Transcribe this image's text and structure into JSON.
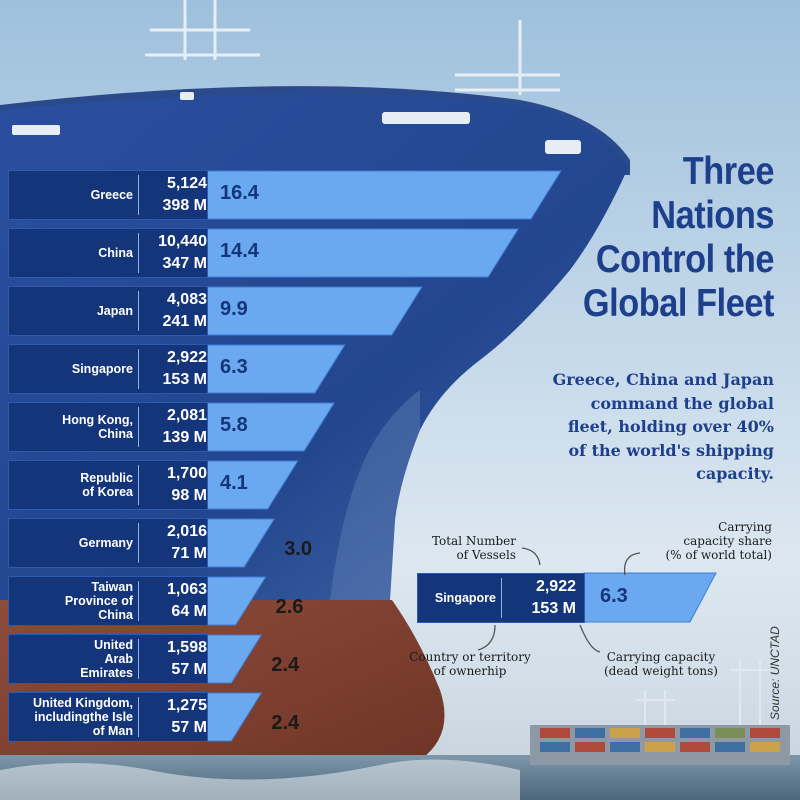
{
  "title": "Three Nations Control the Global Fleet",
  "title_lines": [
    "Three",
    "Nations",
    "Control the",
    "Global Fleet"
  ],
  "subtitle_lines": [
    "Greece, China and Japan",
    "command the global",
    "fleet, holding over 40%",
    "of the world's shipping",
    "capacity."
  ],
  "source": "Source: UNCTAD",
  "colors": {
    "panel": "#15357a",
    "bar": "#6aa8ef",
    "bar_edge": "#3d7ed6",
    "text_dark": "#1a1a1a",
    "title": "#1d3f8c"
  },
  "chart_data": {
    "type": "bar",
    "orientation": "horizontal",
    "title": "Three Nations Control the Global Fleet",
    "value_label": "Carrying capacity share (% of world total)",
    "rows": [
      {
        "country_lines": [
          "Greece"
        ],
        "vessels": "5,124",
        "dwt": "398 M",
        "share": 16.4,
        "share_label": "16.4"
      },
      {
        "country_lines": [
          "China"
        ],
        "vessels": "10,440",
        "dwt": "347 M",
        "share": 14.4,
        "share_label": "14.4"
      },
      {
        "country_lines": [
          "Japan"
        ],
        "vessels": "4,083",
        "dwt": "241 M",
        "share": 9.9,
        "share_label": "9.9"
      },
      {
        "country_lines": [
          "Singapore"
        ],
        "vessels": "2,922",
        "dwt": "153 M",
        "share": 6.3,
        "share_label": "6.3"
      },
      {
        "country_lines": [
          "Hong Kong,",
          "China"
        ],
        "vessels": "2,081",
        "dwt": "139 M",
        "share": 5.8,
        "share_label": "5.8"
      },
      {
        "country_lines": [
          "Republic",
          "of Korea"
        ],
        "vessels": "1,700",
        "dwt": "98 M",
        "share": 4.1,
        "share_label": "4.1"
      },
      {
        "country_lines": [
          "Germany"
        ],
        "vessels": "2,016",
        "dwt": "71 M",
        "share": 3.0,
        "share_label": "3.0"
      },
      {
        "country_lines": [
          "Taiwan",
          "Province of",
          "China"
        ],
        "vessels": "1,063",
        "dwt": "64 M",
        "share": 2.6,
        "share_label": "2.6"
      },
      {
        "country_lines": [
          "United",
          "Arab",
          "Emirates"
        ],
        "vessels": "1,598",
        "dwt": "57 M",
        "share": 2.4,
        "share_label": "2.4"
      },
      {
        "country_lines": [
          "United Kingdom,",
          "includingthe Isle",
          "of Man"
        ],
        "vessels": "1,275",
        "dwt": "57 M",
        "share": 2.4,
        "share_label": "2.4"
      }
    ]
  },
  "legend": {
    "country": "Singapore",
    "vessels": "2,922",
    "dwt": "153 M",
    "share": "6.3",
    "label_vessels_lines": [
      "Total Number",
      "of Vessels"
    ],
    "label_share_lines": [
      "Carrying",
      "capacity share",
      "(% of world total)"
    ],
    "label_country_lines": [
      "Country or territory",
      "of ownerhip"
    ],
    "label_dwt_lines": [
      "Carrying capacity",
      "(dead weight tons)"
    ]
  }
}
